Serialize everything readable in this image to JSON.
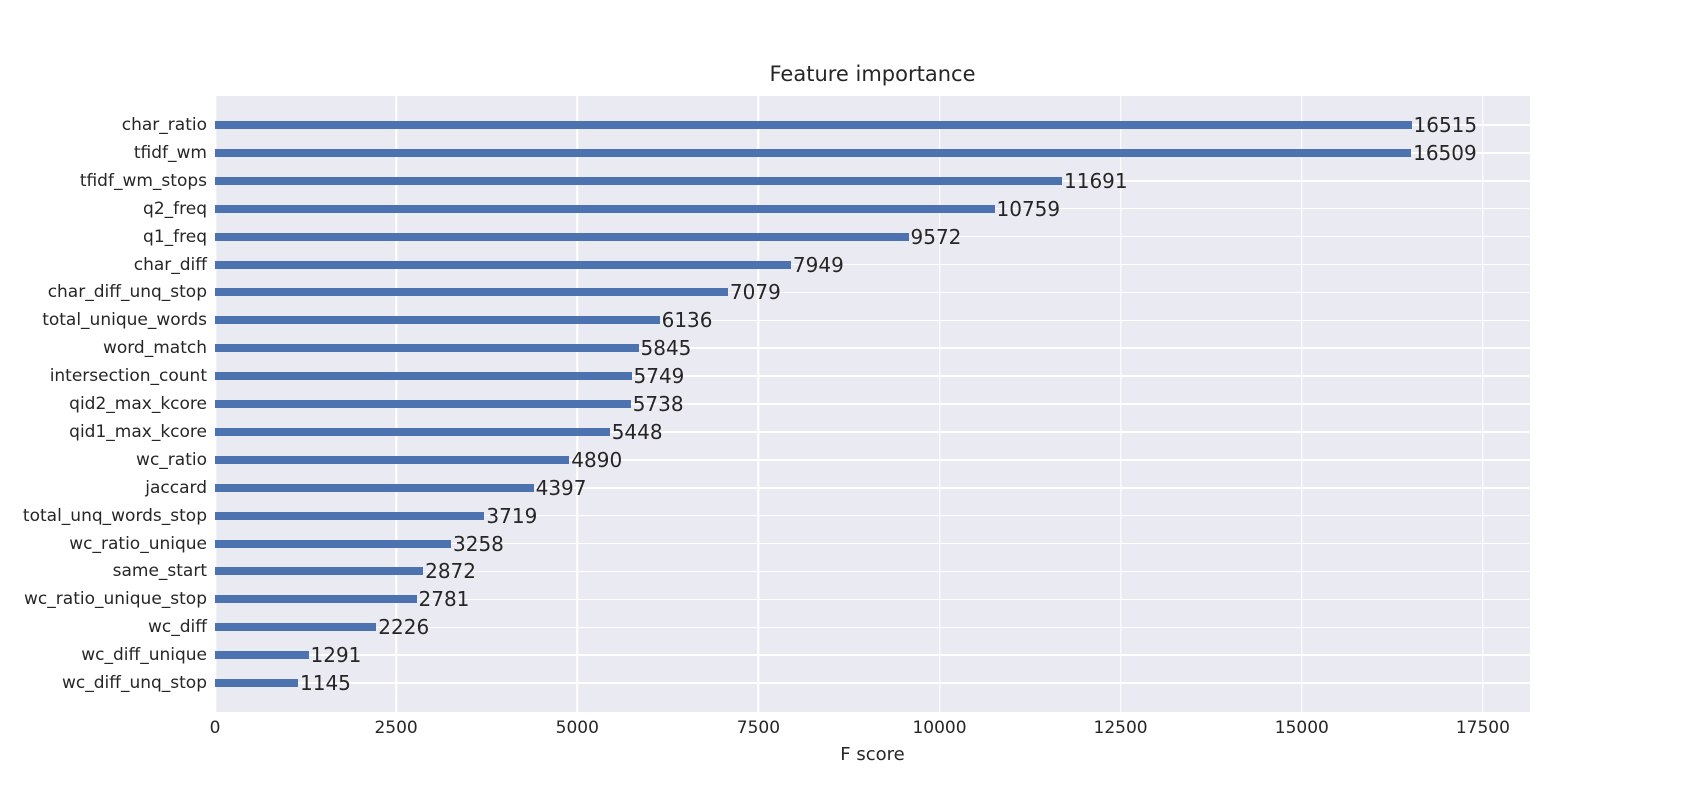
{
  "chart_data": {
    "type": "bar",
    "orientation": "horizontal",
    "title": "Feature importance",
    "xlabel": "F score",
    "ylabel": "",
    "categories": [
      "char_ratio",
      "tfidf_wm",
      "tfidf_wm_stops",
      "q2_freq",
      "q1_freq",
      "char_diff",
      "char_diff_unq_stop",
      "total_unique_words",
      "word_match",
      "intersection_count",
      "qid2_max_kcore",
      "qid1_max_kcore",
      "wc_ratio",
      "jaccard",
      "total_unq_words_stop",
      "wc_ratio_unique",
      "same_start",
      "wc_ratio_unique_stop",
      "wc_diff",
      "wc_diff_unique",
      "wc_diff_unq_stop"
    ],
    "values": [
      16515,
      16509,
      11691,
      10759,
      9572,
      7949,
      7079,
      6136,
      5845,
      5749,
      5738,
      5448,
      4890,
      4397,
      3719,
      3258,
      2872,
      2781,
      2226,
      1291,
      1145
    ],
    "xticks": [
      0,
      2500,
      5000,
      7500,
      10000,
      12500,
      15000,
      17500
    ],
    "xtick_labels": [
      "0",
      "2500",
      "5000",
      "7500",
      "10000",
      "12500",
      "15000",
      "17500"
    ],
    "xlim": [
      0,
      18150
    ],
    "grid": true,
    "legend_position": "none",
    "colors": {
      "bar": "#4c72b0",
      "plot_background": "#eaeaf2",
      "grid": "#ffffff",
      "text": "#262626"
    }
  }
}
